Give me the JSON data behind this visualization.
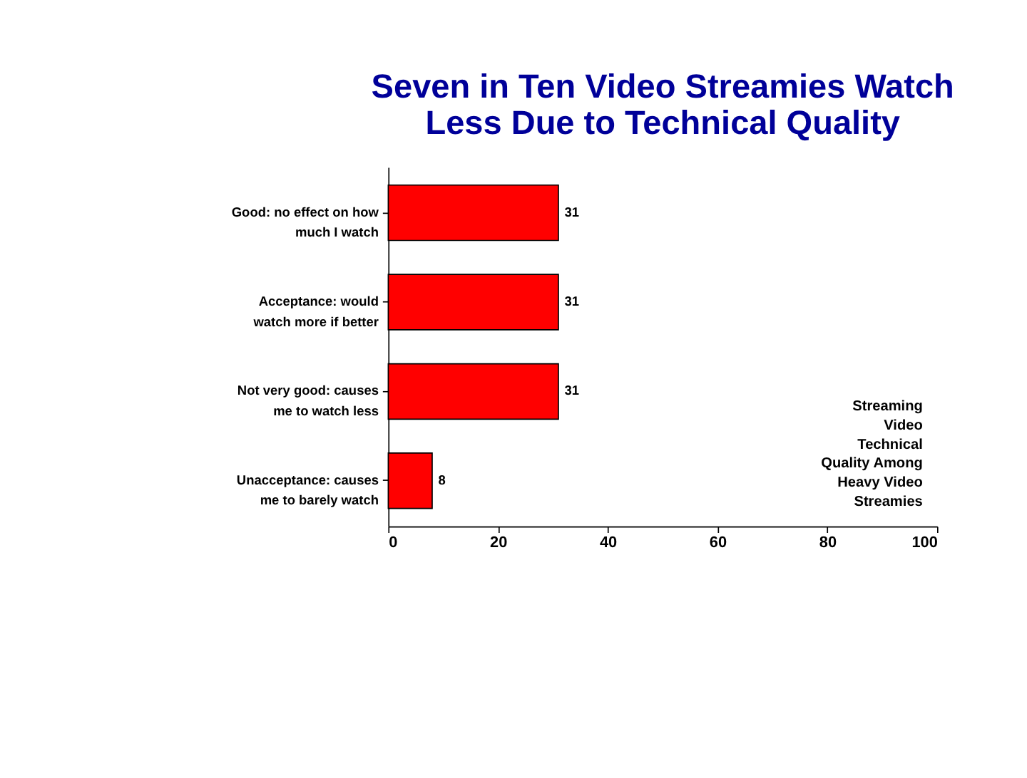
{
  "chart_data": {
    "type": "bar",
    "orientation": "horizontal",
    "title": "Seven in Ten Video Streamies Watch Less Due to Technical Quality",
    "categories": [
      "Good: no effect on how much I watch",
      "Acceptance: would watch more if better",
      "Not very good: causes me to watch less",
      "Unacceptance: causes me to barely watch"
    ],
    "values": [
      31,
      31,
      31,
      8
    ],
    "color": "#ff0000",
    "data_labels": true,
    "xlim": [
      0,
      100
    ],
    "xticks": [
      0,
      20,
      40,
      60,
      80,
      100
    ],
    "grid": false,
    "annotations": [
      "Streaming Video Technical Quality Among Heavy Video Streamies"
    ]
  }
}
